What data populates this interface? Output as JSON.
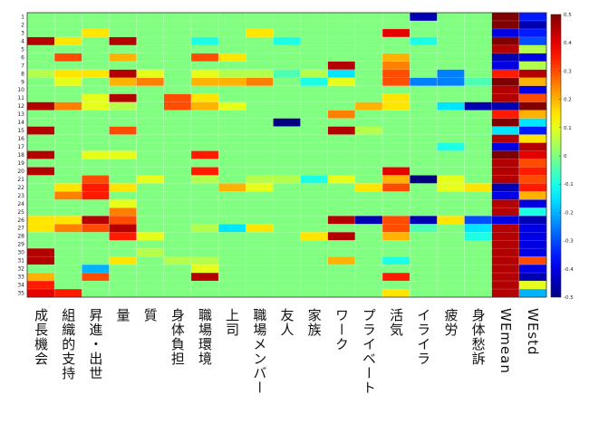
{
  "chart_data": {
    "type": "heatmap",
    "title": "",
    "xlabel": "",
    "ylabel": "",
    "columns": [
      "成長機会",
      "組織的支持",
      "昇進・出世",
      "量",
      "質",
      "身体負担",
      "職場環境",
      "上司",
      "職場メンバー",
      "友人",
      "家族",
      "ワーク",
      "プライベート",
      "活気",
      "イライラ",
      "疲労",
      "身体愁訴",
      "WEmean",
      "WEstd"
    ],
    "rows": [
      "1",
      "2",
      "3",
      "4",
      "5",
      "6",
      "7",
      "8",
      "9",
      "10",
      "11",
      "12",
      "13",
      "14",
      "15",
      "16",
      "17",
      "18",
      "19",
      "20",
      "21",
      "22",
      "23",
      "24",
      "25",
      "26",
      "27",
      "28",
      "29",
      "30",
      "31",
      "32",
      "33",
      "34",
      "35"
    ],
    "colorbar": {
      "colormap": "jet",
      "range": [
        -0.5,
        0.5
      ],
      "ticks": [
        0.5,
        0.4,
        0.3,
        0.2,
        0.1,
        0,
        -0.1,
        -0.2,
        -0.3,
        -0.4,
        -0.5
      ]
    },
    "values": [
      [
        0,
        0,
        0,
        0,
        0,
        0,
        0,
        0,
        0,
        0,
        0,
        0,
        0,
        0,
        -0.45,
        0,
        0,
        0.5,
        -0.35
      ],
      [
        0,
        0,
        0,
        0,
        0,
        0,
        0,
        0,
        0,
        0,
        0,
        0,
        0,
        0,
        0,
        0,
        0,
        0.5,
        -0.45
      ],
      [
        0,
        0,
        0.15,
        0,
        0,
        0,
        0,
        0,
        0.15,
        0,
        0,
        0,
        0,
        0.4,
        0,
        0,
        0,
        -0.4,
        -0.35
      ],
      [
        0.45,
        0.15,
        0,
        0.45,
        0,
        0,
        -0.1,
        0,
        0,
        -0.1,
        0,
        0,
        0,
        0,
        -0.1,
        0,
        0,
        0.5,
        -0.3
      ],
      [
        0,
        0,
        0,
        0,
        0,
        0,
        0,
        0,
        0,
        0,
        0,
        0,
        0,
        0,
        0,
        0,
        0,
        0.45,
        0.05
      ],
      [
        0,
        0.3,
        0,
        0.2,
        0,
        0,
        0.3,
        0.15,
        0,
        0,
        0,
        0,
        0,
        0.2,
        0,
        0,
        0,
        -0.45,
        -0.4
      ],
      [
        0,
        0,
        0,
        0,
        0,
        0,
        0,
        0,
        0,
        0,
        0,
        0.45,
        0,
        0.25,
        0,
        0,
        0,
        -0.4,
        0.05
      ],
      [
        0.05,
        0.15,
        0.15,
        0.45,
        0.1,
        0,
        0.1,
        0.05,
        0.05,
        -0.05,
        0.05,
        -0.15,
        0,
        0.3,
        0,
        -0.25,
        0,
        0.35,
        0.45
      ],
      [
        0,
        0.1,
        0,
        0.2,
        0.25,
        0,
        0.2,
        0.2,
        0.25,
        0,
        -0.1,
        0.1,
        0,
        0.3,
        -0.25,
        -0.25,
        -0.05,
        0.5,
        0.2
      ],
      [
        0,
        0,
        0,
        0,
        0,
        0,
        0,
        0,
        0,
        0,
        0,
        0,
        0,
        0,
        0,
        0,
        0,
        0.45,
        -0.4
      ],
      [
        0,
        0,
        0.1,
        0.45,
        0,
        0.3,
        0.15,
        0,
        0,
        0,
        0,
        0,
        0,
        0.15,
        0,
        0,
        0,
        0.45,
        0.3
      ],
      [
        0.45,
        0.25,
        0.1,
        0.05,
        0,
        0.3,
        0.2,
        0.1,
        0,
        0,
        0,
        0,
        0.2,
        0.15,
        0,
        -0.15,
        -0.45,
        -0.45,
        0.5
      ],
      [
        0,
        0,
        0,
        0,
        0,
        0,
        0,
        0,
        0,
        0,
        0,
        0.25,
        0,
        0,
        0,
        0,
        0,
        0.35,
        0.2
      ],
      [
        0,
        0,
        0,
        0,
        0,
        0,
        0,
        0,
        0,
        -0.5,
        0,
        0,
        0,
        0,
        0,
        0,
        0,
        0.5,
        -0.15
      ],
      [
        0.45,
        0,
        0,
        0.3,
        0,
        0,
        0,
        0,
        0,
        0,
        0,
        0.45,
        0.05,
        0,
        0,
        0,
        0,
        -0.15,
        -0.35
      ],
      [
        0,
        0,
        0,
        0,
        0,
        0,
        0,
        0,
        0,
        0,
        0,
        0,
        0,
        0,
        0,
        0,
        0,
        0.45,
        0.15
      ],
      [
        0,
        0,
        0,
        0,
        0,
        0,
        0,
        0,
        0,
        0,
        0,
        0,
        0,
        0,
        0,
        -0.1,
        0,
        -0.4,
        0.45
      ],
      [
        0.45,
        0,
        0.1,
        0.1,
        0,
        0,
        0.35,
        0,
        0,
        0,
        0,
        0,
        0,
        0,
        0,
        0,
        0,
        0.5,
        0.4
      ],
      [
        0,
        0,
        0,
        0,
        0,
        0,
        0,
        0,
        0,
        0,
        0,
        0,
        0,
        0,
        0,
        0,
        0,
        0.45,
        0.3
      ],
      [
        0.45,
        0,
        0,
        0,
        0,
        0,
        0.35,
        0,
        0,
        0,
        0,
        0,
        0,
        0.4,
        0,
        0,
        0,
        0.45,
        0.35
      ],
      [
        0,
        0,
        0.3,
        0,
        0.1,
        0,
        0.05,
        0,
        0.05,
        0.05,
        -0.1,
        0.1,
        0,
        0.2,
        -0.5,
        0.1,
        0,
        0.45,
        0.3
      ],
      [
        0,
        0.15,
        0.35,
        0.15,
        0,
        0,
        0,
        0.2,
        0.1,
        0,
        0,
        0,
        0.15,
        0.3,
        0,
        0.1,
        0.15,
        -0.45,
        0.35
      ],
      [
        0,
        0.25,
        0.35,
        0,
        0,
        0,
        0,
        0,
        0,
        0,
        0,
        0,
        0,
        0,
        0,
        0,
        0,
        -0.4,
        0.2
      ],
      [
        0,
        0,
        0,
        0.1,
        0,
        0,
        0,
        0,
        0,
        0,
        0,
        0,
        0,
        0,
        0,
        0,
        0,
        0.45,
        -0.4
      ],
      [
        0,
        0,
        0,
        0.25,
        0,
        0,
        0,
        0,
        0,
        0,
        0,
        0,
        0,
        0,
        0,
        0,
        0,
        0.45,
        -0.1
      ],
      [
        0.15,
        0.15,
        0.45,
        0.3,
        0,
        0,
        0,
        0,
        0,
        0,
        0,
        0.45,
        -0.45,
        0.3,
        -0.45,
        0.15,
        -0.3,
        -0.4,
        -0.45
      ],
      [
        0.15,
        0.25,
        0.3,
        0.45,
        0,
        0,
        0.05,
        -0.15,
        0.15,
        0,
        0,
        0,
        0,
        0.3,
        -0.05,
        0,
        -0.15,
        0.45,
        -0.4
      ],
      [
        0,
        0,
        0,
        0.35,
        0.1,
        0,
        0,
        0,
        0,
        0,
        0.15,
        0.45,
        0,
        0.2,
        0,
        0,
        -0.1,
        0.45,
        -0.4
      ],
      [
        0,
        0,
        0,
        0,
        0,
        0,
        0,
        0,
        0,
        0,
        0,
        0,
        0,
        0,
        0,
        0,
        0,
        0.45,
        -0.4
      ],
      [
        0.45,
        0,
        0,
        0,
        0.05,
        0,
        0,
        0,
        0,
        0,
        0,
        0,
        0,
        0,
        0,
        0,
        0,
        0.45,
        -0.4
      ],
      [
        0.45,
        0,
        0,
        0.15,
        0,
        0.05,
        0.05,
        0,
        0,
        0,
        0,
        0.2,
        0,
        -0.1,
        0,
        0,
        0,
        0.45,
        0.3
      ],
      [
        0,
        0,
        -0.2,
        0,
        0,
        0,
        0.1,
        0,
        0,
        0,
        0,
        0,
        0,
        0,
        0,
        0,
        0,
        0.45,
        -0.4
      ],
      [
        0.2,
        0,
        0.3,
        0,
        0,
        0,
        0.45,
        0,
        0,
        0,
        0,
        0,
        0,
        0.35,
        0,
        0,
        0,
        0.45,
        -0.45
      ],
      [
        0.35,
        0,
        0,
        0,
        0,
        0,
        0,
        0,
        0,
        0,
        0,
        0,
        0,
        0,
        0,
        0,
        0,
        0.45,
        0.1
      ],
      [
        0.4,
        0.35,
        0,
        0,
        0,
        0,
        0,
        0,
        0,
        0,
        0,
        0,
        0,
        0.15,
        0,
        0,
        0,
        0.45,
        -0.2
      ]
    ]
  }
}
